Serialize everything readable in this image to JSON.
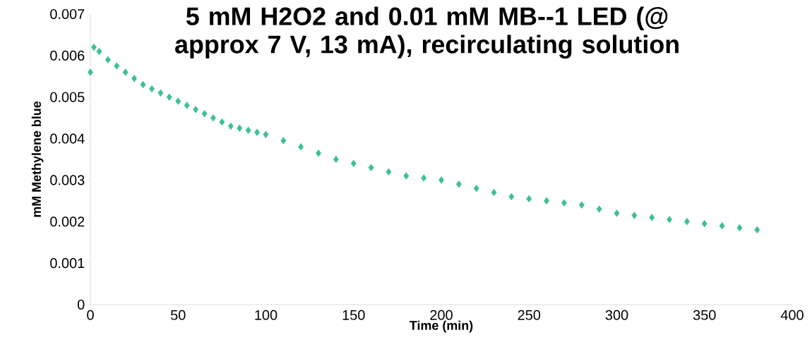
{
  "chart_data": {
    "type": "scatter",
    "title": "5 mM H2O2 and 0.01 mM MB--1 LED (@ approx 7 V, 13 mA), recirculating solution",
    "xlabel": "Time (min)",
    "ylabel": "mM Methylene blue",
    "x": [
      0,
      2,
      5,
      10,
      15,
      20,
      25,
      30,
      35,
      40,
      45,
      50,
      55,
      60,
      65,
      70,
      75,
      80,
      85,
      90,
      95,
      100,
      110,
      120,
      130,
      140,
      150,
      160,
      170,
      180,
      190,
      200,
      210,
      220,
      230,
      240,
      250,
      260,
      270,
      280,
      290,
      300,
      310,
      320,
      330,
      340,
      350,
      360,
      370,
      380
    ],
    "values": [
      0.0056,
      0.0062,
      0.0061,
      0.0059,
      0.00575,
      0.0056,
      0.00545,
      0.0053,
      0.0052,
      0.0051,
      0.005,
      0.0049,
      0.0048,
      0.0047,
      0.0046,
      0.0045,
      0.0044,
      0.0043,
      0.00425,
      0.0042,
      0.00415,
      0.0041,
      0.00395,
      0.0038,
      0.00365,
      0.0035,
      0.0034,
      0.0033,
      0.0032,
      0.0031,
      0.00305,
      0.003,
      0.0029,
      0.0028,
      0.0027,
      0.0026,
      0.00255,
      0.0025,
      0.00245,
      0.0024,
      0.0023,
      0.0022,
      0.00215,
      0.0021,
      0.00205,
      0.002,
      0.00195,
      0.0019,
      0.00185,
      0.0018
    ],
    "color": "#3cbf9a",
    "marker": "diamond",
    "xlim": [
      0,
      400
    ],
    "ylim": [
      0,
      0.007
    ],
    "xticks": [
      0,
      50,
      100,
      150,
      200,
      250,
      300,
      350,
      400
    ],
    "yticks": [
      0,
      0.001,
      0.002,
      0.003,
      0.004,
      0.005,
      0.006,
      0.007
    ]
  }
}
